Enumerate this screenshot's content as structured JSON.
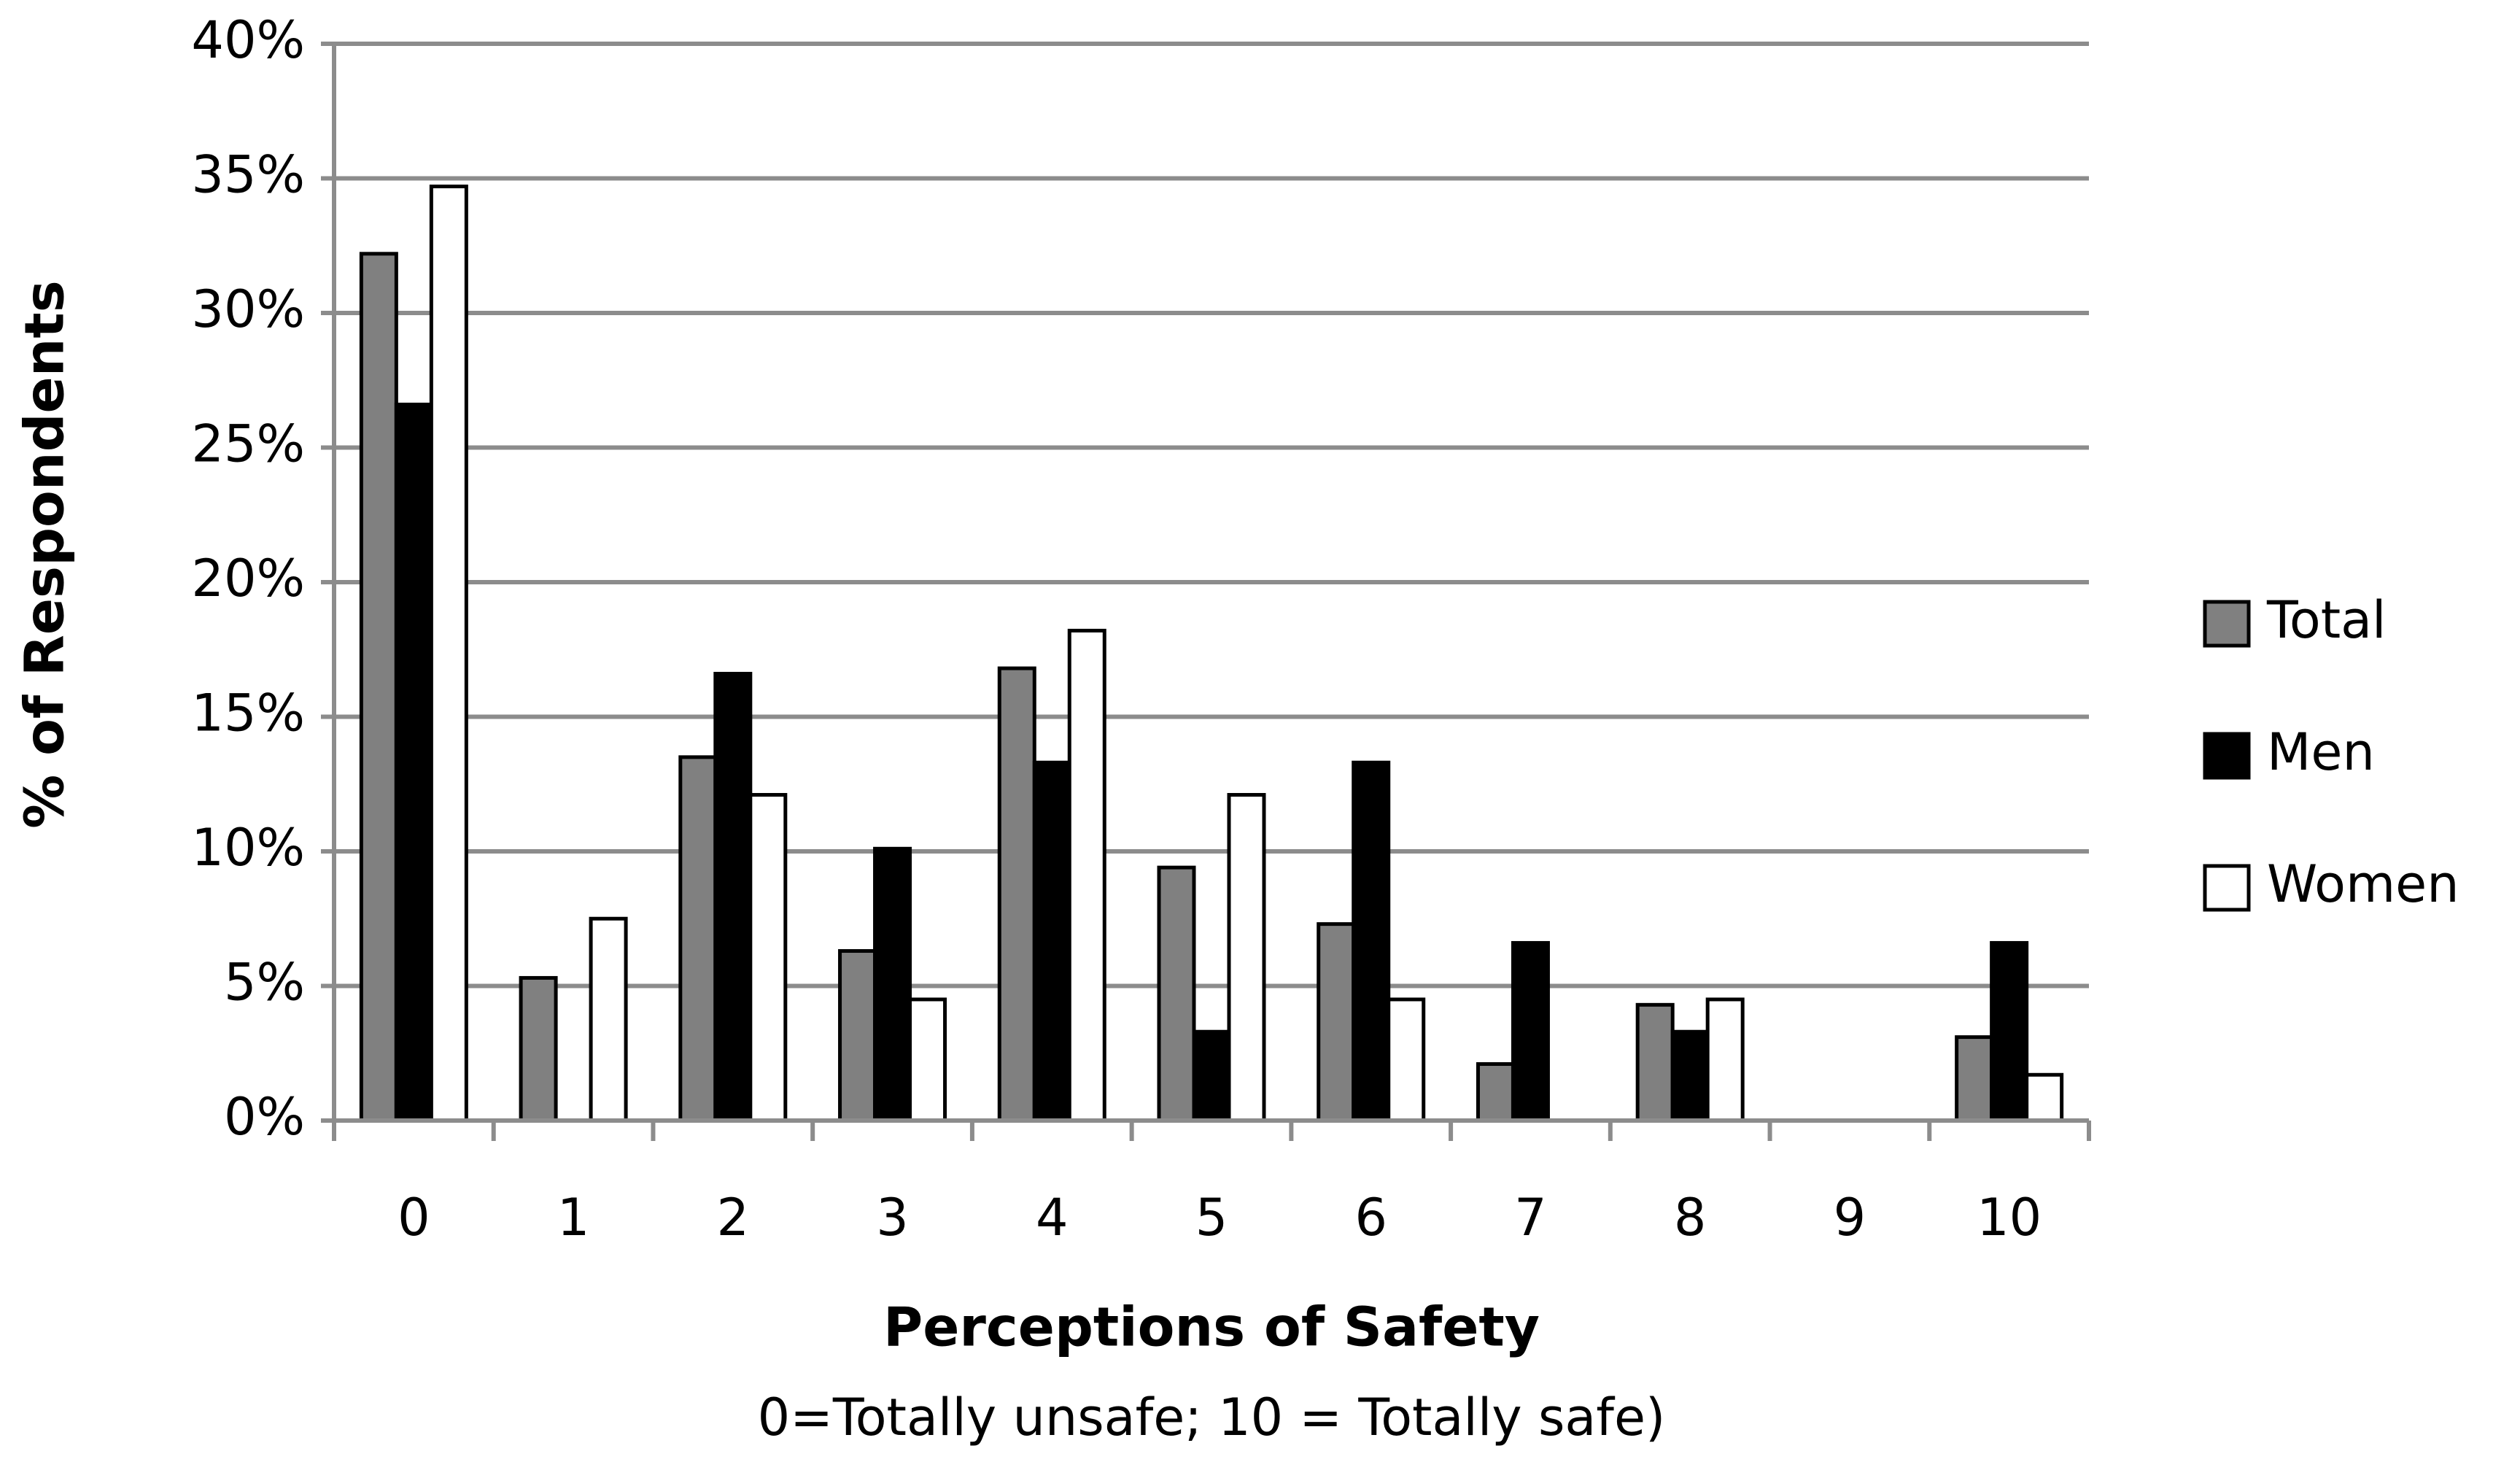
{
  "chart_data": {
    "type": "bar",
    "x_label": "Perceptions of Safety",
    "subtitle": "0=Totally unsafe; 10 = Totally safe)",
    "y_label": "% of Respondents",
    "categories": [
      "0",
      "1",
      "2",
      "3",
      "4",
      "5",
      "6",
      "7",
      "8",
      "9",
      "10"
    ],
    "series": [
      {
        "name": "Total",
        "color": "#808080",
        "values": [
          32.2,
          5.3,
          13.5,
          6.3,
          16.8,
          9.4,
          7.3,
          2.1,
          4.3,
          0,
          3.1
        ]
      },
      {
        "name": "Men",
        "color": "#000000",
        "values": [
          26.6,
          0,
          16.6,
          10.1,
          13.3,
          3.3,
          13.3,
          6.6,
          3.3,
          0,
          6.6
        ]
      },
      {
        "name": "Women",
        "color": "#ffffff",
        "values": [
          34.7,
          7.5,
          12.1,
          4.5,
          18.2,
          12.1,
          4.5,
          0,
          4.5,
          0,
          1.7
        ]
      }
    ],
    "ylim": [
      0,
      40
    ],
    "yticks": [
      {
        "value": 0,
        "label": "0%"
      },
      {
        "value": 5,
        "label": "5%"
      },
      {
        "value": 10,
        "label": "10%"
      },
      {
        "value": 15,
        "label": "15%"
      },
      {
        "value": 20,
        "label": "20%"
      },
      {
        "value": 25,
        "label": "25%"
      },
      {
        "value": 30,
        "label": "30%"
      },
      {
        "value": 35,
        "label": "35%"
      },
      {
        "value": 40,
        "label": "40%"
      }
    ],
    "grid": true,
    "legend": "right"
  }
}
